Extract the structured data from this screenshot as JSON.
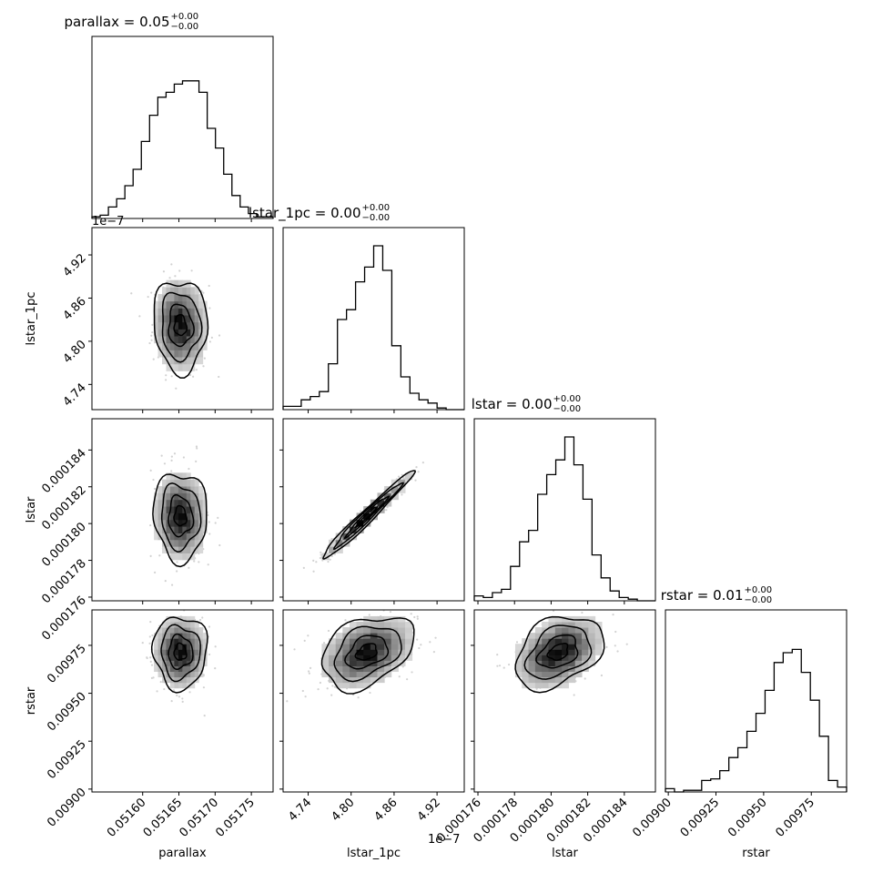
{
  "chart_data": {
    "type": "corner",
    "variables": [
      {
        "name": "parallax",
        "label": "parallax",
        "title_name": "parallax",
        "title_value": "0.05",
        "title_plus": "+0.00",
        "title_minus": "−0.00",
        "range": [
          0.05153,
          0.05178
        ],
        "ticks": [
          0.0516,
          0.05165,
          0.0517,
          0.05175
        ],
        "tick_labels": [
          "0.05160",
          "0.05165",
          "0.05170",
          "0.05175"
        ],
        "offset": ""
      },
      {
        "name": "lstar_1pc",
        "label": "lstar_1pc",
        "title_name": "lstar_1pc",
        "title_value": "0.00",
        "title_plus": "+0.00",
        "title_minus": "−0.00",
        "range": [
          4.705,
          4.958
        ],
        "ticks": [
          4.74,
          4.8,
          4.86,
          4.92
        ],
        "tick_labels": [
          "4.74",
          "4.80",
          "4.86",
          "4.92"
        ],
        "offset": "1e−7"
      },
      {
        "name": "lstar",
        "label": "lstar",
        "title_name": "lstar",
        "title_value": "0.00",
        "title_plus": "+0.00",
        "title_minus": "−0.00",
        "range": [
          0.0001758,
          0.0001857
        ],
        "ticks": [
          0.000176,
          0.000178,
          0.00018,
          0.000182,
          0.000184
        ],
        "tick_labels": [
          "0.000176",
          "0.000178",
          "0.000180",
          "0.000182",
          "0.000184"
        ],
        "offset": ""
      },
      {
        "name": "rstar",
        "label": "rstar",
        "title_name": "rstar",
        "title_value": "0.01",
        "title_plus": "+0.00",
        "title_minus": "−0.00",
        "range": [
          0.008985,
          0.009935
        ],
        "ticks": [
          0.009,
          0.00925,
          0.0095,
          0.00975
        ],
        "tick_labels": [
          "0.00900",
          "0.00925",
          "0.00950",
          "0.00975"
        ],
        "offset": ""
      }
    ],
    "histograms": [
      [
        0.01,
        0.02,
        0.07,
        0.12,
        0.2,
        0.3,
        0.47,
        0.63,
        0.74,
        0.77,
        0.82,
        0.84,
        0.84,
        0.77,
        0.55,
        0.43,
        0.27,
        0.14,
        0.07,
        0.03,
        0.01,
        0.01
      ],
      [
        0.02,
        0.02,
        0.06,
        0.08,
        0.11,
        0.28,
        0.55,
        0.61,
        0.78,
        0.87,
        1.0,
        0.85,
        0.39,
        0.2,
        0.1,
        0.06,
        0.04,
        0.01,
        0.0,
        0.0
      ],
      [
        0.03,
        0.02,
        0.05,
        0.07,
        0.21,
        0.36,
        0.43,
        0.65,
        0.77,
        0.86,
        1.0,
        0.83,
        0.62,
        0.28,
        0.14,
        0.06,
        0.02,
        0.01,
        0.0,
        0.0
      ],
      [
        0.02,
        0.0,
        0.01,
        0.01,
        0.07,
        0.08,
        0.13,
        0.21,
        0.27,
        0.37,
        0.48,
        0.62,
        0.79,
        0.85,
        0.87,
        0.73,
        0.56,
        0.34,
        0.07,
        0.03
      ]
    ],
    "pair_panels": [
      {
        "x": "parallax",
        "y": "lstar_1pc",
        "center": [
          0.051652,
          4.822
        ],
        "spread": [
          1.85e-05,
          0.032
        ],
        "rho": -0.05
      },
      {
        "x": "parallax",
        "y": "lstar",
        "center": [
          0.051652,
          0.0001804
        ],
        "spread": [
          1.85e-05,
          1.2e-06
        ],
        "rho": -0.05
      },
      {
        "x": "lstar_1pc",
        "y": "lstar",
        "center": [
          4.822,
          0.0001804
        ],
        "spread": [
          0.032,
          1.2e-06
        ],
        "rho": 0.98
      },
      {
        "x": "parallax",
        "y": "rstar",
        "center": [
          0.051652,
          0.009715
        ],
        "spread": [
          1.85e-05,
          9.5e-05
        ],
        "rho": 0.0
      },
      {
        "x": "lstar_1pc",
        "y": "rstar",
        "center": [
          4.822,
          0.009715
        ],
        "spread": [
          0.032,
          9.5e-05
        ],
        "rho": 0.35
      },
      {
        "x": "lstar",
        "y": "rstar",
        "center": [
          0.0001804,
          0.009715
        ],
        "spread": [
          1.2e-06,
          9.5e-05
        ],
        "rho": 0.35
      }
    ],
    "grid": false,
    "colors": {
      "hist": "#000000",
      "contour": "#000000",
      "points": "#d2d2d2"
    }
  }
}
